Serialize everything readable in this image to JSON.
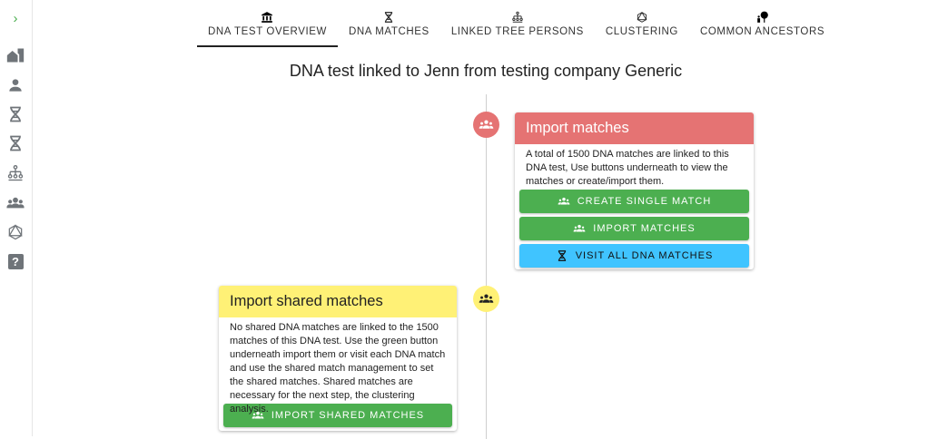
{
  "sidebar": {
    "items": [
      {
        "icon": "chevron-right-icon"
      },
      {
        "icon": "home-city-icon"
      },
      {
        "icon": "person-icon"
      },
      {
        "icon": "dna-icon"
      },
      {
        "icon": "dna-icon"
      },
      {
        "icon": "family-tree-icon"
      },
      {
        "icon": "group-icon"
      },
      {
        "icon": "graphql-icon"
      },
      {
        "icon": "help-icon"
      }
    ]
  },
  "tabs": [
    {
      "label": "DNA TEST OVERVIEW",
      "icon": "bank-icon",
      "active": true
    },
    {
      "label": "DNA MATCHES",
      "icon": "dna-icon"
    },
    {
      "label": "LINKED TREE PERSONS",
      "icon": "family-tree-icon"
    },
    {
      "label": "CLUSTERING",
      "icon": "graphql-icon"
    },
    {
      "label": "COMMON ANCESTORS",
      "icon": "tree-person-icon"
    }
  ],
  "page_title": "DNA test linked to Jenn from testing company Generic",
  "colors": {
    "red": "#e57373",
    "yellow": "#fff176",
    "green": "#4caf50",
    "blue": "#40c4ff"
  },
  "import_matches": {
    "title": "Import matches",
    "text": "A total of 1500 DNA matches are linked to this DNA test, Use buttons underneath to view the matches or create/import them.",
    "buttons": [
      "CREATE SINGLE MATCH",
      "IMPORT MATCHES",
      "VISIT ALL DNA MATCHES"
    ]
  },
  "import_shared": {
    "title": "Import shared matches",
    "text": "No shared DNA matches are linked to the 1500 matches of this DNA test. Use the green button underneath import them or visit each DNA match and use the shared match management to set the shared matches. Shared matches are necessary for the next step, the clustering analysis.",
    "button": "IMPORT SHARED MATCHES"
  }
}
